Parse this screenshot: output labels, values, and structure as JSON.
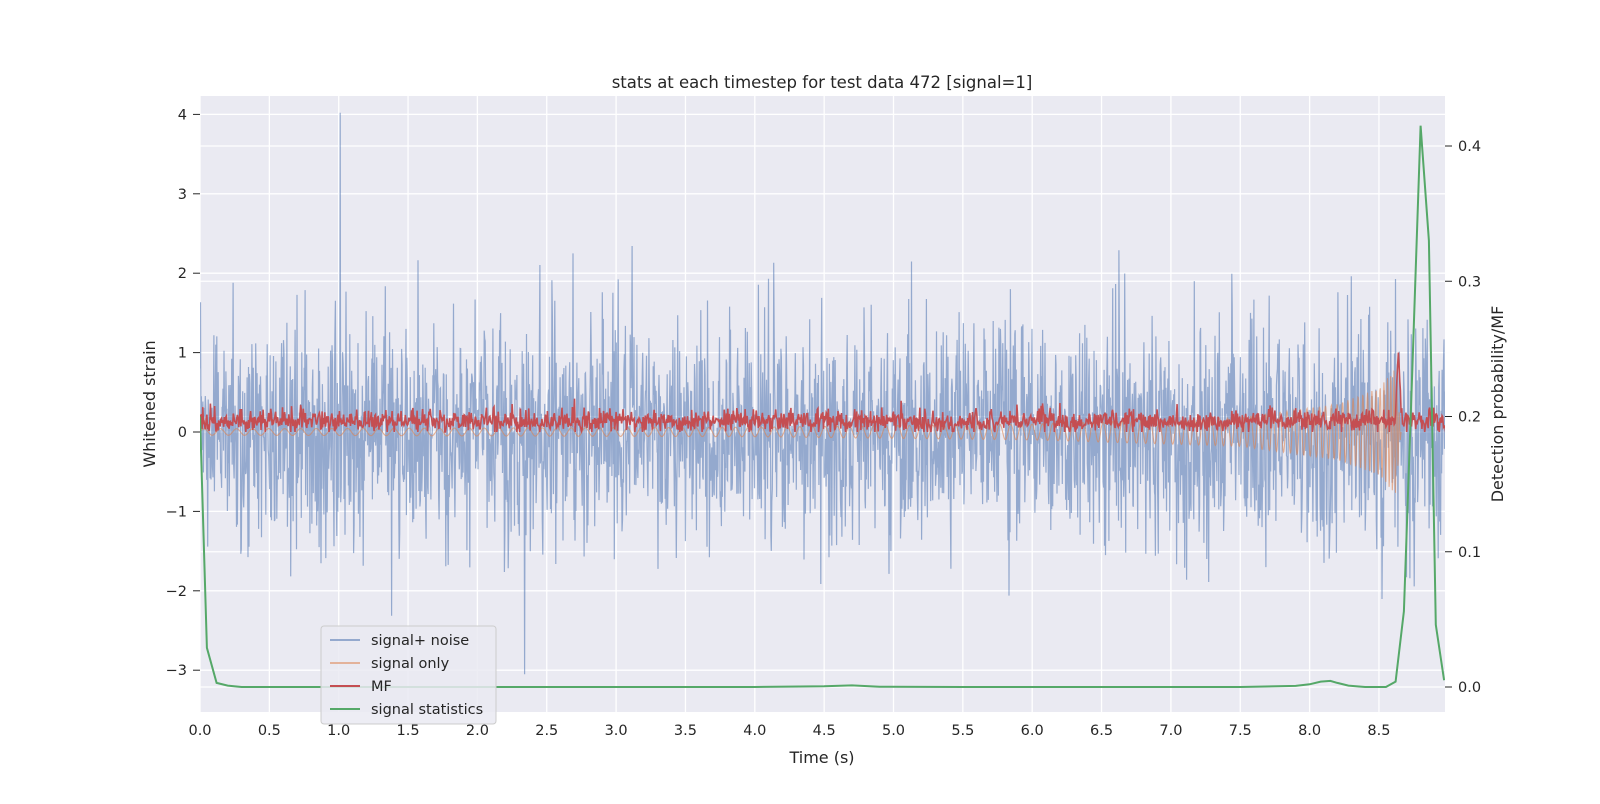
{
  "chart_data": {
    "type": "line",
    "title": "stats at each timestep for test data 472 [signal=1]",
    "xlabel": "Time (s)",
    "ylabel": "Whitened strain",
    "y2label": "Detection probability/MF",
    "xlim": [
      0.0,
      9.0
    ],
    "ylim": [
      -3.35,
      4.35
    ],
    "y2lim": [
      -0.019,
      0.43
    ],
    "grid": true,
    "legend_position": "lower-left",
    "xticks": [
      "0.0",
      "0.5",
      "1.0",
      "1.5",
      "2.0",
      "2.5",
      "3.0",
      "3.5",
      "4.0",
      "4.5",
      "5.0",
      "5.5",
      "6.0",
      "6.5",
      "7.0",
      "7.5",
      "8.0",
      "8.5"
    ],
    "yticks": [
      "4",
      "3",
      "2",
      "1",
      "0",
      "−1",
      "−2",
      "−3"
    ],
    "y2ticks": [
      "0.4",
      "0.3",
      "0.2",
      "0.1",
      "0.0"
    ],
    "series": [
      {
        "name": "signal+ noise",
        "color": "#4c72b0",
        "axis": "left",
        "description_values": {
          "noise_std": 0.72,
          "peak_t": 1.01,
          "peak_y": 4.02,
          "min_t": 2.34,
          "min_y": -3.05
        }
      },
      {
        "name": "signal only",
        "color": "#dd8452",
        "axis": "left",
        "envelope": [
          [
            0.0,
            0.04
          ],
          [
            4.0,
            0.06
          ],
          [
            6.0,
            0.1
          ],
          [
            7.5,
            0.18
          ],
          [
            8.2,
            0.35
          ],
          [
            8.5,
            0.55
          ],
          [
            8.62,
            0.8
          ],
          [
            8.66,
            0.0
          ]
        ]
      },
      {
        "name": "MF",
        "color": "#c44e52",
        "axis": "left",
        "baseline": 0.13,
        "spike": [
          8.64,
          1.0
        ]
      },
      {
        "name": "signal statistics",
        "color": "#55a868",
        "axis": "right",
        "x": [
          0.0,
          0.05,
          0.12,
          0.2,
          0.3,
          1.0,
          2.0,
          3.0,
          4.0,
          4.5,
          4.7,
          4.9,
          5.5,
          6.5,
          7.5,
          7.9,
          8.0,
          8.08,
          8.15,
          8.2,
          8.28,
          8.4,
          8.55,
          8.62,
          8.68,
          8.74,
          8.8,
          8.86,
          8.91,
          8.97
        ],
        "y": [
          0.2,
          0.029,
          0.003,
          0.001,
          0.0,
          0.0,
          0.0,
          0.0,
          0.0,
          0.0005,
          0.0012,
          0.0002,
          0.0,
          0.0,
          0.0,
          0.0008,
          0.002,
          0.004,
          0.0045,
          0.003,
          0.001,
          0.0,
          0.0,
          0.004,
          0.056,
          0.232,
          0.415,
          0.33,
          0.046,
          0.005
        ]
      }
    ]
  },
  "legend": {
    "items": [
      "signal+ noise",
      "signal only",
      "MF",
      "signal statistics"
    ]
  }
}
